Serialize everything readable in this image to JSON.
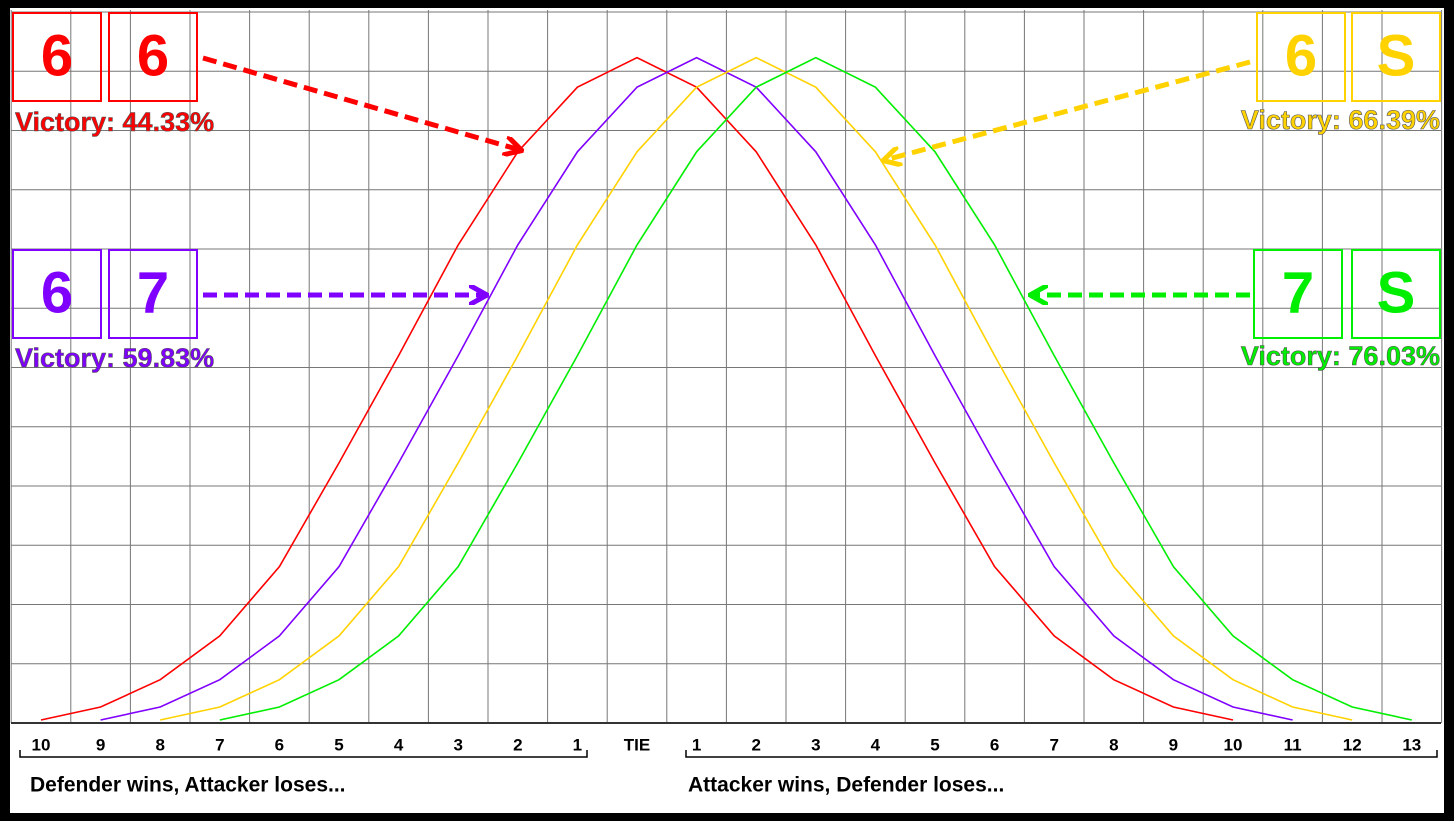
{
  "chart_data": {
    "type": "line",
    "categories": [
      "10",
      "9",
      "8",
      "7",
      "6",
      "5",
      "4",
      "3",
      "2",
      "1",
      "TIE",
      "1",
      "2",
      "3",
      "4",
      "5",
      "6",
      "7",
      "8",
      "9",
      "10",
      "11",
      "12",
      "13"
    ],
    "series": [
      {
        "color": "#ff0000",
        "values": [
          0.05,
          0.27,
          0.73,
          1.47,
          2.64,
          4.39,
          6.2,
          8.07,
          9.64,
          10.73,
          11.23,
          10.73,
          9.64,
          8.07,
          6.2,
          4.39,
          2.64,
          1.47,
          0.73,
          0.27,
          0.05,
          null,
          null,
          null
        ]
      },
      {
        "color": "#7f00ff",
        "values": [
          null,
          0.05,
          0.27,
          0.73,
          1.47,
          2.64,
          4.39,
          6.2,
          8.07,
          9.64,
          10.73,
          11.23,
          10.73,
          9.64,
          8.07,
          6.2,
          4.39,
          2.64,
          1.47,
          0.73,
          0.27,
          0.05,
          null,
          null
        ]
      },
      {
        "color": "#ffd200",
        "values": [
          null,
          null,
          0.05,
          0.27,
          0.73,
          1.47,
          2.64,
          4.39,
          6.2,
          8.07,
          9.64,
          10.73,
          11.23,
          10.73,
          9.64,
          8.07,
          6.2,
          4.39,
          2.64,
          1.47,
          0.73,
          0.27,
          0.05,
          null
        ]
      },
      {
        "color": "#00ee00",
        "values": [
          null,
          null,
          null,
          0.05,
          0.27,
          0.73,
          1.47,
          2.64,
          4.39,
          6.2,
          8.07,
          9.64,
          10.73,
          11.23,
          10.73,
          9.64,
          8.07,
          6.2,
          4.39,
          2.64,
          1.47,
          0.73,
          0.27,
          0.05
        ]
      }
    ],
    "ylim": [
      0,
      12
    ],
    "yticks": [
      0,
      1,
      2,
      3,
      4,
      5,
      6,
      7,
      8,
      9,
      10,
      11,
      12
    ],
    "grid": true,
    "annotations": [
      {
        "labels": [
          "6",
          "6"
        ],
        "text": "Victory: 44.33%"
      },
      {
        "labels": [
          "6",
          "7"
        ],
        "text": "Victory: 59.83%"
      },
      {
        "labels": [
          "6",
          "S"
        ],
        "text": "Victory: 66.39%"
      },
      {
        "labels": [
          "7",
          "S"
        ],
        "text": "Victory: 76.03%"
      }
    ],
    "xlabel_left": "Defender wins, Attacker loses...",
    "xlabel_right": "Attacker wins, Defender loses..."
  }
}
